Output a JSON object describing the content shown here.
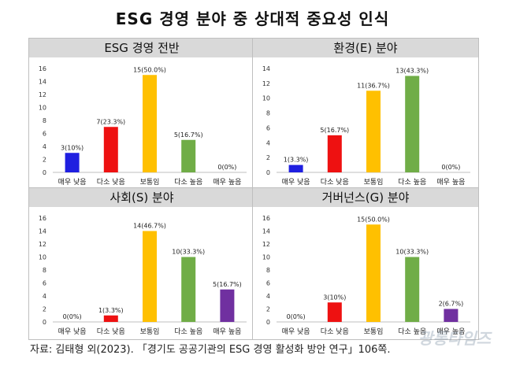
{
  "title": "ESG 경영 분야 중 상대적 중요성 인식",
  "source": "자료: 김태형 외(2023). 「경기도 공공기관의 ESG 경영 활성화 방안 연구」106쪽.",
  "watermark": "광통타임즈",
  "chart_data": [
    {
      "type": "bar",
      "title": "ESG 경영 전반",
      "categories": [
        "매우 낮음",
        "다소 낮음",
        "보통임",
        "다소 높음",
        "매우 높음"
      ],
      "values": [
        3,
        7,
        15,
        5,
        0
      ],
      "data_labels": [
        "3(10%)",
        "7(23.3%)",
        "15(50.0%)",
        "5(16.7%)",
        "0(0%)"
      ],
      "colors": [
        "#1f1fe0",
        "#ee1111",
        "#ffc000",
        "#70ad47",
        "#7030a0"
      ],
      "ylim": [
        0,
        16
      ],
      "yticks": [
        0,
        2,
        4,
        6,
        8,
        10,
        12,
        14,
        16
      ],
      "grid": false
    },
    {
      "type": "bar",
      "title": "환경(E) 분야",
      "categories": [
        "매우 낮음",
        "다소 낮음",
        "보통임",
        "다소 높음",
        "매우 높음"
      ],
      "values": [
        1,
        5,
        11,
        13,
        0
      ],
      "data_labels": [
        "1(3.3%)",
        "5(16.7%)",
        "11(36.7%)",
        "13(43.3%)",
        "0(0%)"
      ],
      "colors": [
        "#1f1fe0",
        "#ee1111",
        "#ffc000",
        "#70ad47",
        "#7030a0"
      ],
      "ylim": [
        0,
        14
      ],
      "yticks": [
        0,
        2,
        4,
        6,
        8,
        10,
        12,
        14
      ],
      "grid": false
    },
    {
      "type": "bar",
      "title": "사회(S) 분야",
      "categories": [
        "매우 낮음",
        "다소 낮음",
        "보통임",
        "다소 높음",
        "매우 높음"
      ],
      "values": [
        0,
        1,
        14,
        10,
        5
      ],
      "data_labels": [
        "0(0%)",
        "1(3.3%)",
        "14(46.7%)",
        "10(33.3%)",
        "5(16.7%)"
      ],
      "colors": [
        "#1f1fe0",
        "#ee1111",
        "#ffc000",
        "#70ad47",
        "#7030a0"
      ],
      "ylim": [
        0,
        16
      ],
      "yticks": [
        0,
        2,
        4,
        6,
        8,
        10,
        12,
        14,
        16
      ],
      "grid": false
    },
    {
      "type": "bar",
      "title": "거버넌스(G) 분야",
      "categories": [
        "매우 낮음",
        "다소 낮음",
        "보통임",
        "다소 높음",
        "매우 높음"
      ],
      "values": [
        0,
        3,
        15,
        10,
        2
      ],
      "data_labels": [
        "0(0%)",
        "3(10%)",
        "15(50.0%)",
        "10(33.3%)",
        "2(6.7%)"
      ],
      "colors": [
        "#1f1fe0",
        "#ee1111",
        "#ffc000",
        "#70ad47",
        "#7030a0"
      ],
      "ylim": [
        0,
        16
      ],
      "yticks": [
        0,
        2,
        4,
        6,
        8,
        10,
        12,
        14,
        16
      ],
      "grid": false
    }
  ]
}
